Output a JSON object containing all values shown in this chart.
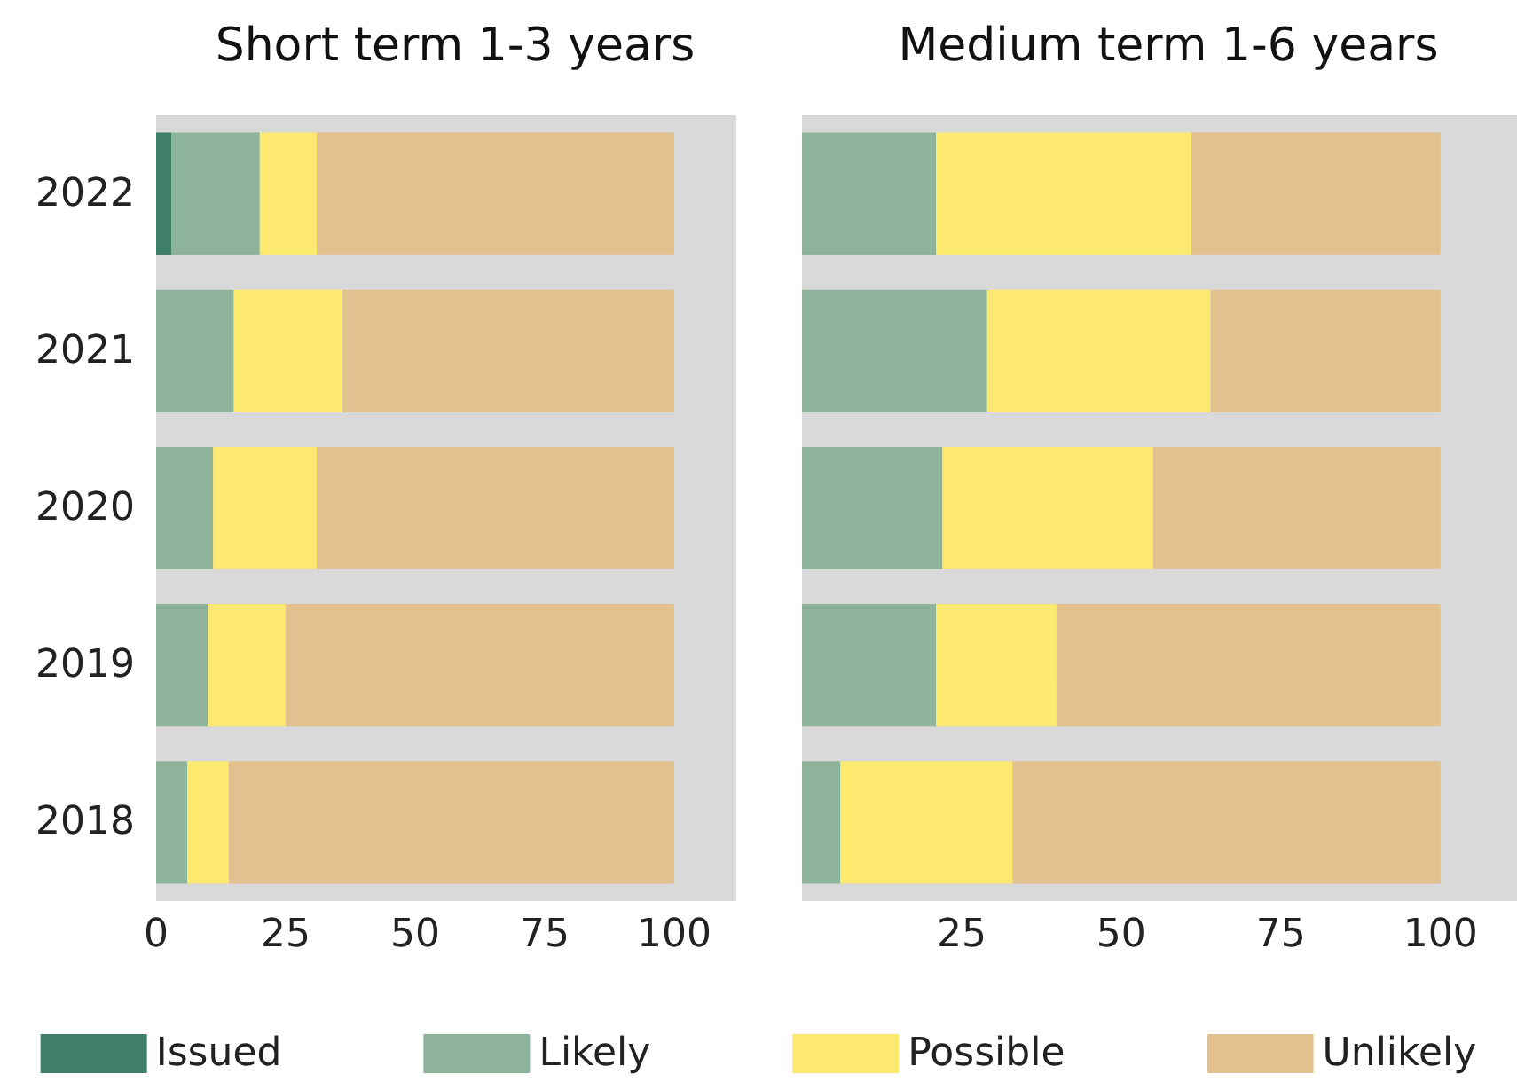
{
  "chart_data": [
    {
      "type": "bar",
      "orientation": "horizontal",
      "stacked": true,
      "title": "Short term 1-3 years",
      "categories": [
        "2022",
        "2021",
        "2020",
        "2019",
        "2018"
      ],
      "series": [
        {
          "name": "Issued",
          "color": "#3f7f6a",
          "values": [
            3,
            0,
            0,
            0,
            0
          ]
        },
        {
          "name": "Likely",
          "color": "#8db39b",
          "values": [
            17,
            15,
            11,
            10,
            6
          ]
        },
        {
          "name": "Possible",
          "color": "#fde870",
          "values": [
            11,
            21,
            20,
            15,
            8
          ]
        },
        {
          "name": "Unlikely",
          "color": "#e2c18f",
          "values": [
            69,
            64,
            69,
            75,
            86
          ]
        }
      ],
      "xlim": [
        0,
        112
      ],
      "xticks": [
        0,
        25,
        50,
        75,
        100
      ],
      "legend": "bottom"
    },
    {
      "type": "bar",
      "orientation": "horizontal",
      "stacked": true,
      "title": "Medium term 1-6 years",
      "categories": [
        "2022",
        "2021",
        "2020",
        "2019",
        "2018"
      ],
      "series": [
        {
          "color": "#8db39b",
          "values": [
            21,
            29,
            22,
            21,
            6
          ]
        },
        {
          "color": "#fde870",
          "values": [
            40,
            35,
            33,
            19,
            27
          ]
        },
        {
          "color": "#e2c18f",
          "values": [
            39,
            36,
            45,
            60,
            67
          ]
        }
      ],
      "xlim": [
        0,
        112
      ],
      "xticks": [
        25,
        50,
        75,
        100
      ],
      "tick_labels": "x"
    }
  ]
}
